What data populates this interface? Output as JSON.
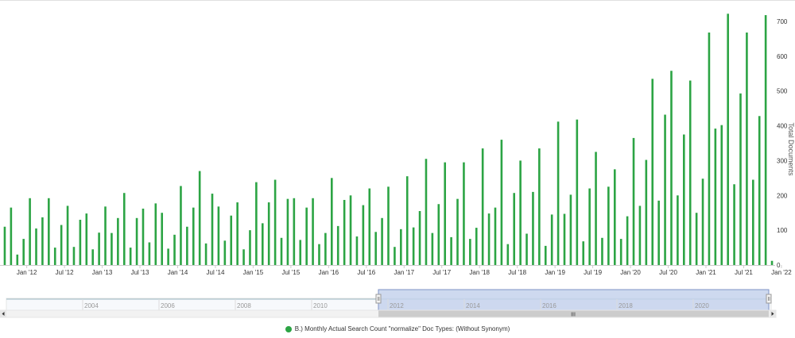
{
  "chart_data": {
    "type": "bar",
    "ylabel": "Total Documents",
    "ylim": [
      0,
      750
    ],
    "yticks": [
      0,
      100,
      200,
      300,
      400,
      500,
      600,
      700
    ],
    "grid": false,
    "legend_position": "bottom",
    "xtick_labels": [
      "Jan '12",
      "Jul '12",
      "Jan '13",
      "Jul '13",
      "Jan '14",
      "Jul '14",
      "Jan '15",
      "Jul '15",
      "Jan '16",
      "Jul '16",
      "Jan '17",
      "Jul '17",
      "Jan '18",
      "Jul '18",
      "Jan '19",
      "Jul '19",
      "Jan '20",
      "Jul '20",
      "Jan '21",
      "Jul '21",
      "Jan '22"
    ],
    "x_start": "2011-09",
    "series": [
      {
        "name": "B.) Monthly Actual Search Count \"normalize\" Doc Types: (Without Synonym)",
        "color": "#2ca444",
        "values": [
          110,
          165,
          30,
          75,
          192,
          105,
          137,
          192,
          50,
          115,
          170,
          52,
          130,
          148,
          45,
          93,
          168,
          92,
          135,
          207,
          50,
          135,
          162,
          65,
          177,
          150,
          47,
          87,
          227,
          110,
          165,
          270,
          62,
          205,
          168,
          70,
          142,
          180,
          45,
          100,
          238,
          120,
          180,
          245,
          78,
          190,
          192,
          72,
          165,
          192,
          60,
          92,
          250,
          112,
          187,
          200,
          82,
          172,
          220,
          95,
          135,
          225,
          52,
          103,
          255,
          108,
          155,
          305,
          92,
          175,
          295,
          80,
          190,
          295,
          75,
          107,
          335,
          148,
          165,
          360,
          60,
          207,
          300,
          90,
          210,
          335,
          55,
          145,
          412,
          147,
          202,
          418,
          68,
          220,
          325,
          78,
          225,
          275,
          75,
          140,
          365,
          170,
          302,
          535,
          185,
          432,
          558,
          200,
          375,
          530,
          150,
          248,
          668,
          392,
          402,
          722,
          232,
          493,
          668,
          245,
          428,
          718,
          12
        ]
      }
    ]
  },
  "navigator": {
    "year_labels": [
      "2004",
      "2006",
      "2008",
      "2010",
      "2012",
      "2014",
      "2016",
      "2018",
      "2020"
    ],
    "selected_range": [
      "2011-09",
      "2022-01"
    ],
    "scrollbar_grip": "III"
  },
  "colors": {
    "navigator_fill": "#c5d2ec",
    "navigator_outline": "#7f93c4"
  }
}
